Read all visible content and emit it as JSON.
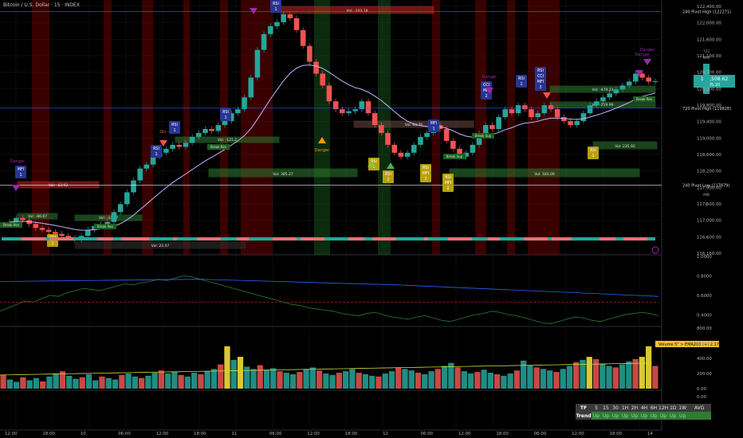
{
  "header": {
    "title": "Bitcoin / U.S. Dollar · 15 · INDEX"
  },
  "price_axis": {
    "ticks": [
      "122,400.00",
      "122,000.00",
      "121,600.00",
      "121,100.00",
      "120,700.00",
      "120,200.00",
      "119,800.00",
      "119,400.00",
      "119,000.00",
      "118,600.00",
      "118,200.00",
      "117,900.00",
      "117,500.00",
      "117,000.00",
      "116,600.00",
      "116,160.00"
    ],
    "current_price": "120,508.62",
    "countdown": "05:20",
    "side_labels": [
      "723",
      "MAX",
      "MIN",
      "0"
    ]
  },
  "pivot_labels": [
    "240 Pivot High (122271)",
    "720 Pivot High (119828)",
    "240 Pivot Low (117879)"
  ],
  "osc_axis": [
    "1.0000",
    "0.8000",
    "0.6000",
    "0.4000"
  ],
  "vol_axis": [
    "800.00",
    "600.00",
    "400.00",
    "200.00",
    "0.00"
  ],
  "bottom_axis": [
    "0.00",
    "-0.00"
  ],
  "volume_label": "Volume 5\" > EMA200 (+) 2.17",
  "time_axis": [
    "12:00",
    "18:00",
    "10",
    "06:00",
    "12:00",
    "18:00",
    "11",
    "06:00",
    "12:00",
    "18:00",
    "12",
    "06:00",
    "12:00",
    "18:00",
    "06:00",
    "12:00",
    "18:00",
    "14"
  ],
  "boxes": [
    {
      "text": "Vol: -103.18"
    },
    {
      "text": "Vol: -479.23"
    },
    {
      "text": "Vol: -43.92"
    },
    {
      "text": "Vol: -86.67"
    },
    {
      "text": "Vol: -33.97"
    },
    {
      "text": "Vol: 22.07"
    },
    {
      "text": "Vol: -121.2"
    },
    {
      "text": "Vol: 385.27"
    },
    {
      "text": "Vol: 64.76"
    },
    {
      "text": "Vol: 183.09"
    },
    {
      "text": "Vol: -219.99"
    },
    {
      "text": "Vol: 235.92"
    }
  ],
  "markers": [
    {
      "text": "RSI 1"
    },
    {
      "text": "RSI 1"
    },
    {
      "text": "RSI 1"
    },
    {
      "text": "MFI 1"
    },
    {
      "text": "RSI 1"
    },
    {
      "text": "MFI 1"
    },
    {
      "text": "CCI MFI 2"
    },
    {
      "text": "RSI 1"
    },
    {
      "text": "RSI CCI MFI 3"
    },
    {
      "text": "CCI 1"
    },
    {
      "text": "RSI 1"
    },
    {
      "text": "RSI 2"
    },
    {
      "text": "RSI MFI 2"
    },
    {
      "text": "RSI MFI 2"
    },
    {
      "text": "RSI 1"
    },
    {
      "text": "RSI 1"
    }
  ],
  "danger_labels": [
    "Danger",
    "Danger",
    "Danger",
    "Danger",
    "Danger"
  ],
  "break_labels": [
    "Break Res",
    "Break Res",
    "Break Res",
    "Break Sup",
    "Break Sup",
    "Break Res"
  ],
  "misc_labels": [
    "Div -"
  ],
  "mtf_table": {
    "headers": [
      "TF",
      "5",
      "15",
      "30",
      "1H",
      "2H",
      "4H",
      "6H",
      "12H",
      "1D",
      "1W",
      "AVG"
    ],
    "row_label": "Trend",
    "values": [
      "Up",
      "Up",
      "Up",
      "Up",
      "Up",
      "Up",
      "Up",
      "Up",
      "Up",
      "Up",
      ""
    ]
  },
  "chart_data": {
    "type": "line",
    "title": "Bitcoin / U.S. Dollar · 15 · INDEX",
    "price_series": [
      116950,
      117050,
      117000,
      116900,
      116800,
      116750,
      116700,
      116650,
      116600,
      116550,
      116500,
      116600,
      116750,
      116850,
      116900,
      116950,
      117200,
      117400,
      117700,
      118000,
      118300,
      118400,
      118600,
      118700,
      118800,
      118900,
      118850,
      118950,
      119100,
      119200,
      119300,
      119250,
      119400,
      119500,
      119700,
      119800,
      120100,
      120600,
      121300,
      121700,
      121900,
      122000,
      122200,
      122100,
      121800,
      121400,
      121000,
      120700,
      120400,
      120000,
      119800,
      119700,
      119750,
      119800,
      120000,
      119700,
      119400,
      119200,
      118900,
      118700,
      118600,
      118700,
      118900,
      119100,
      119200,
      119400,
      119300,
      119000,
      118800,
      118600,
      118700,
      118900,
      119200,
      119400,
      119300,
      119600,
      119800,
      119700,
      119900,
      119800,
      119600,
      119700,
      119900,
      119800,
      119600,
      119500,
      119400,
      119500,
      119700,
      119900,
      120000,
      120100,
      120200,
      120300,
      120400,
      120500,
      120700,
      120600,
      120500,
      120508
    ],
    "volume": [
      180,
      120,
      90,
      150,
      110,
      140,
      95,
      160,
      200,
      230,
      170,
      130,
      150,
      190,
      110,
      160,
      140,
      120,
      180,
      200,
      160,
      140,
      170,
      210,
      240,
      200,
      220,
      180,
      160,
      210,
      190,
      230,
      260,
      320,
      560,
      380,
      420,
      290,
      260,
      310,
      250,
      270,
      230,
      210,
      190,
      220,
      260,
      280,
      240,
      200,
      180,
      210,
      230,
      260,
      210,
      190,
      170,
      160,
      200,
      230,
      280,
      260,
      240,
      210,
      190,
      230,
      260,
      300,
      340,
      280,
      230,
      200,
      220,
      250,
      210,
      190,
      170,
      200,
      240,
      370,
      310,
      280,
      260,
      240,
      220,
      260,
      300,
      350,
      380,
      420,
      390,
      330,
      300,
      280,
      320,
      360,
      390,
      420,
      560,
      300
    ],
    "oscillator": [
      0.52,
      0.55,
      0.58,
      0.61,
      0.6,
      0.63,
      0.66,
      0.65,
      0.68,
      0.7,
      0.72,
      0.71,
      0.7,
      0.72,
      0.74,
      0.76,
      0.75,
      0.77,
      0.78,
      0.8,
      0.79,
      0.81,
      0.83,
      0.82,
      0.8,
      0.78,
      0.76,
      0.74,
      0.72,
      0.7,
      0.68,
      0.66,
      0.64,
      0.62,
      0.6,
      0.58,
      0.57,
      0.55,
      0.54,
      0.53,
      0.52,
      0.5,
      0.49,
      0.48,
      0.5,
      0.51,
      0.49,
      0.47,
      0.46,
      0.45,
      0.47,
      0.48,
      0.46,
      0.44,
      0.43,
      0.45,
      0.47,
      0.49,
      0.5,
      0.52,
      0.51,
      0.49,
      0.48,
      0.46,
      0.44,
      0.42,
      0.41,
      0.43,
      0.45,
      0.47,
      0.46,
      0.44,
      0.43,
      0.45,
      0.47,
      0.49,
      0.5,
      0.51,
      0.5,
      0.48
    ],
    "ylim": [
      116160,
      122400
    ],
    "osc_ylim": [
      0.4,
      1.0
    ],
    "vol_ylim": [
      0,
      800
    ]
  },
  "colors": {
    "up": "#26a69a",
    "down": "#ef5350",
    "bull_zone": "#1b5e20",
    "bear_zone": "#7f0000",
    "ema": "#c6b3ff",
    "pivot_line": "#2962ff",
    "volume_ema": "#cddc39",
    "hot_volume": "#ffeb3b"
  }
}
